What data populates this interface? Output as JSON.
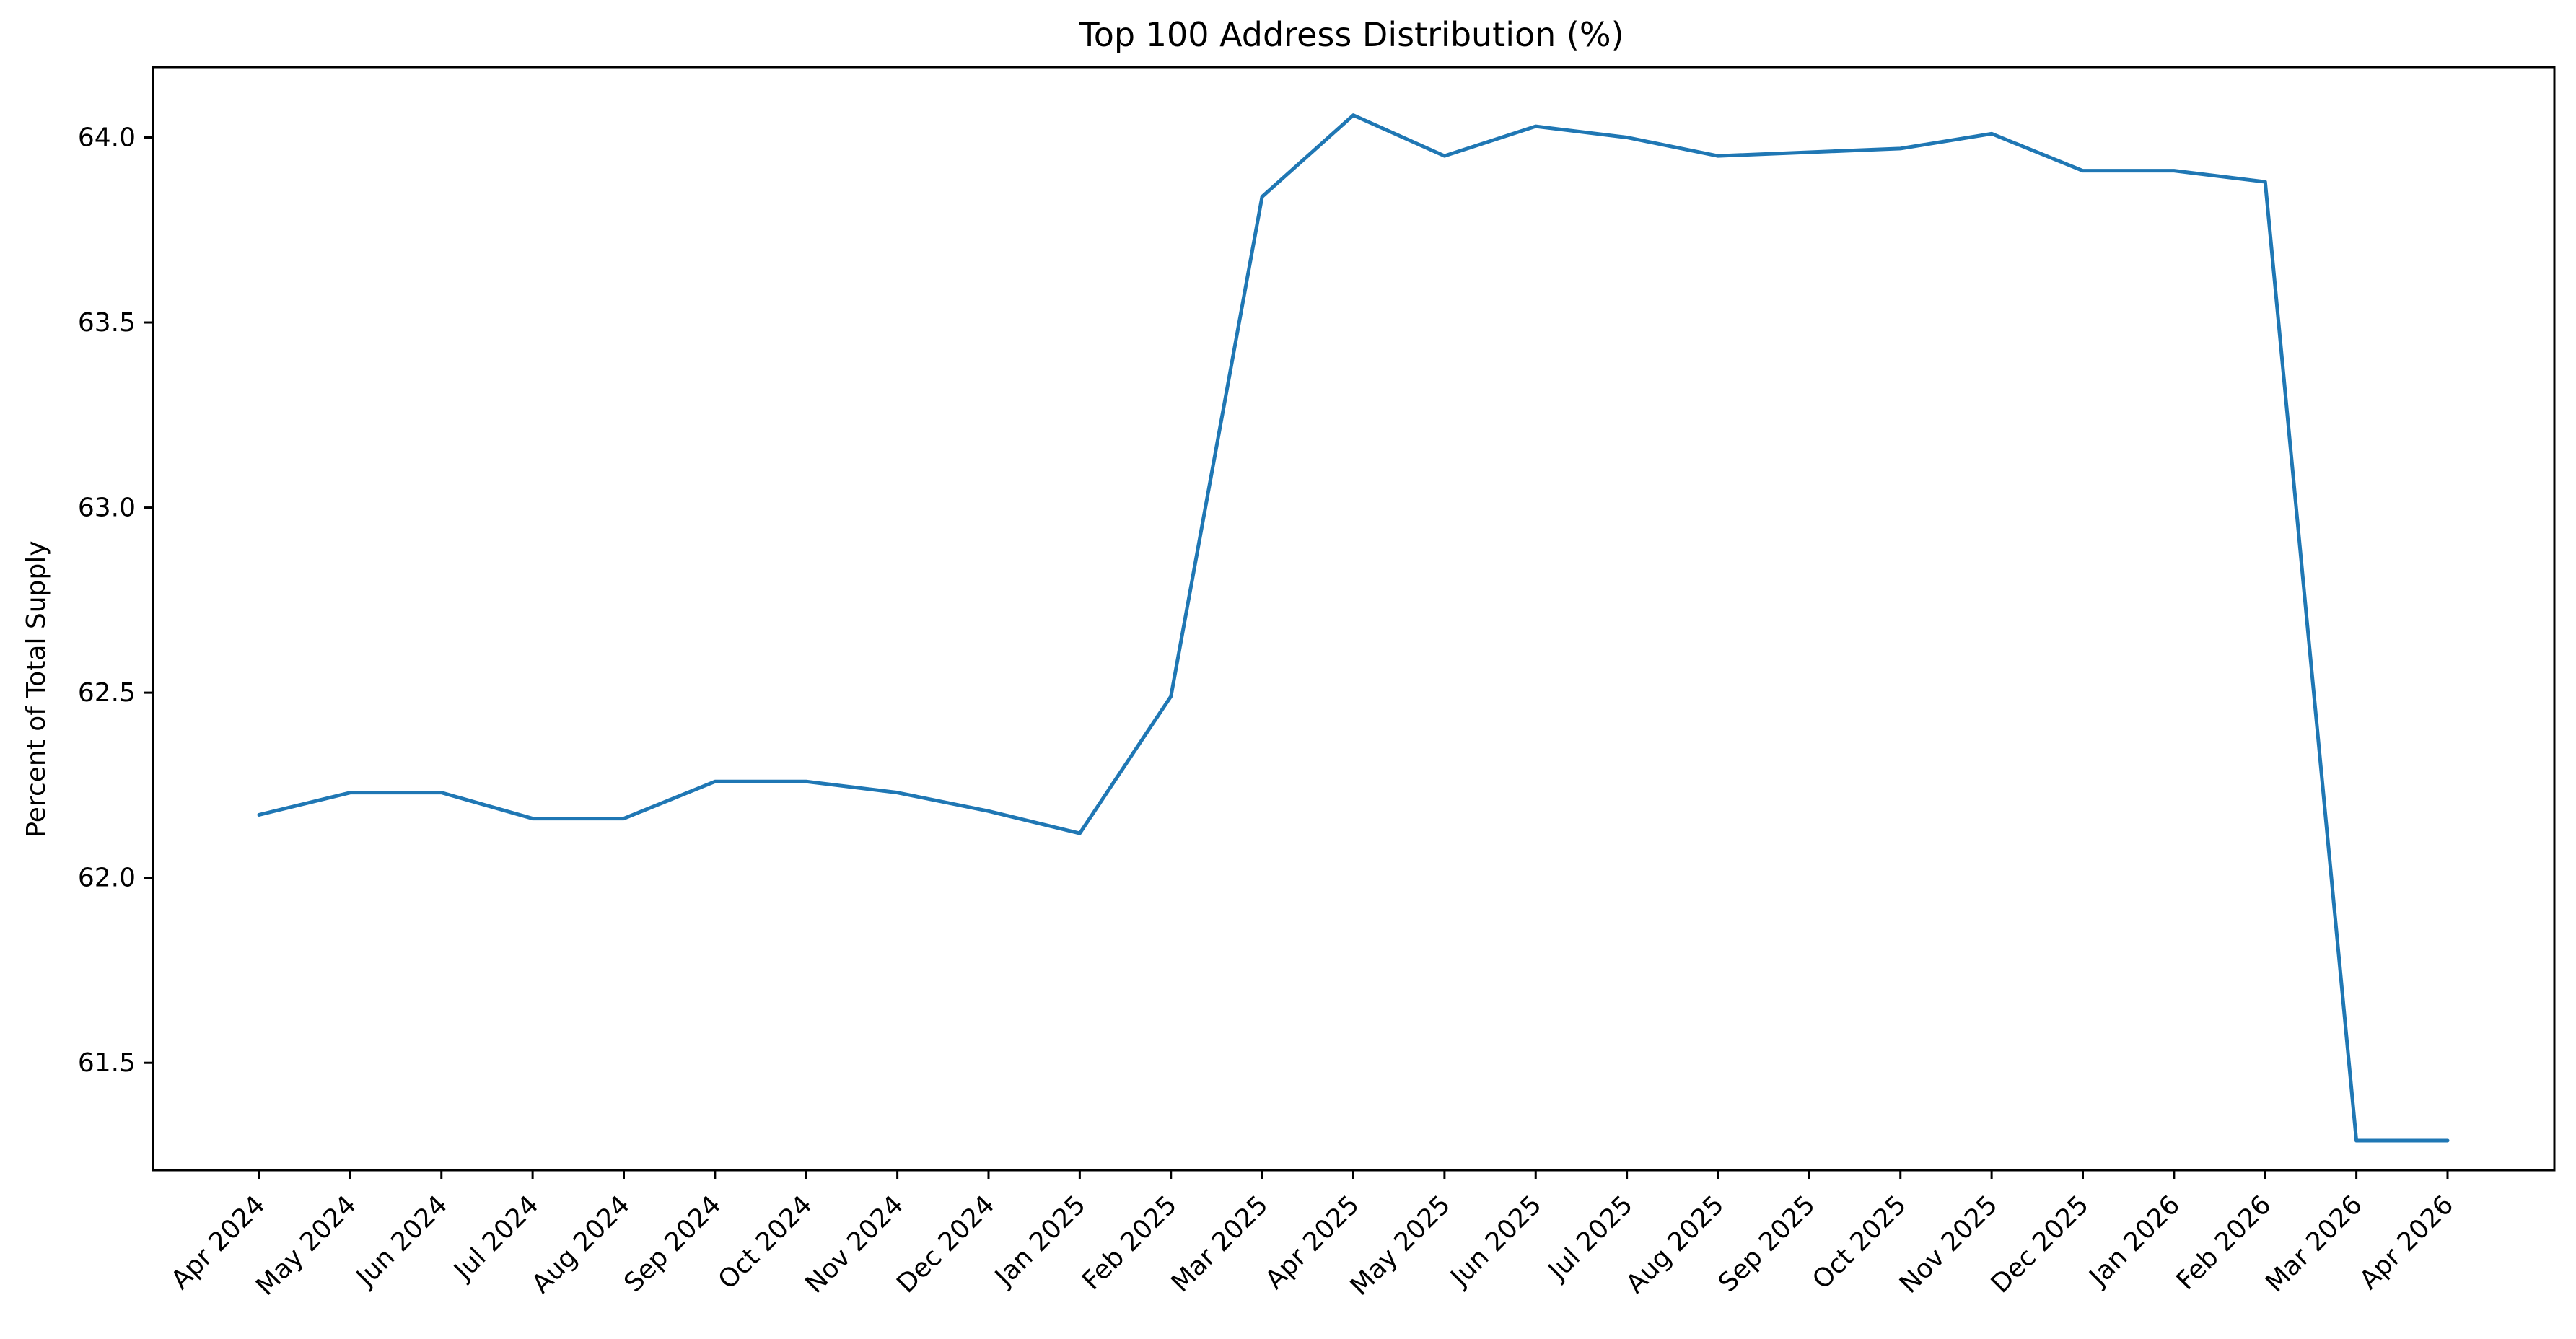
{
  "chart_data": {
    "type": "line",
    "title": "Top 100 Address Distribution (%)",
    "xlabel": "",
    "ylabel": "Percent of Total Supply",
    "categories": [
      "Apr 2024",
      "May 2024",
      "Jun 2024",
      "Jul 2024",
      "Aug 2024",
      "Sep 2024",
      "Oct 2024",
      "Nov 2024",
      "Dec 2024",
      "Jan 2025",
      "Feb 2025",
      "Mar 2025",
      "Apr 2025",
      "May 2025",
      "Jun 2025",
      "Jul 2025",
      "Aug 2025",
      "Sep 2025",
      "Oct 2025",
      "Nov 2025",
      "Dec 2025",
      "Jan 2026",
      "Feb 2026",
      "Mar 2026",
      "Apr 2026"
    ],
    "series": [
      {
        "values": [
          62.17,
          62.23,
          62.23,
          62.16,
          62.16,
          62.26,
          62.26,
          62.23,
          62.18,
          62.12,
          62.49,
          63.84,
          64.06,
          63.95,
          64.03,
          64.0,
          63.95,
          63.96,
          63.97,
          64.01,
          63.91,
          63.91,
          63.88,
          61.29,
          61.29
        ],
        "color": "#1f77b4"
      }
    ],
    "ylim": [
      61.21,
      64.19
    ],
    "yticks": [
      61.5,
      62.0,
      62.5,
      63.0,
      63.5,
      64.0
    ],
    "ytick_labels": [
      "61.5",
      "62.0",
      "62.5",
      "63.0",
      "63.5",
      "64.0"
    ],
    "grid": false,
    "legend": "none"
  }
}
